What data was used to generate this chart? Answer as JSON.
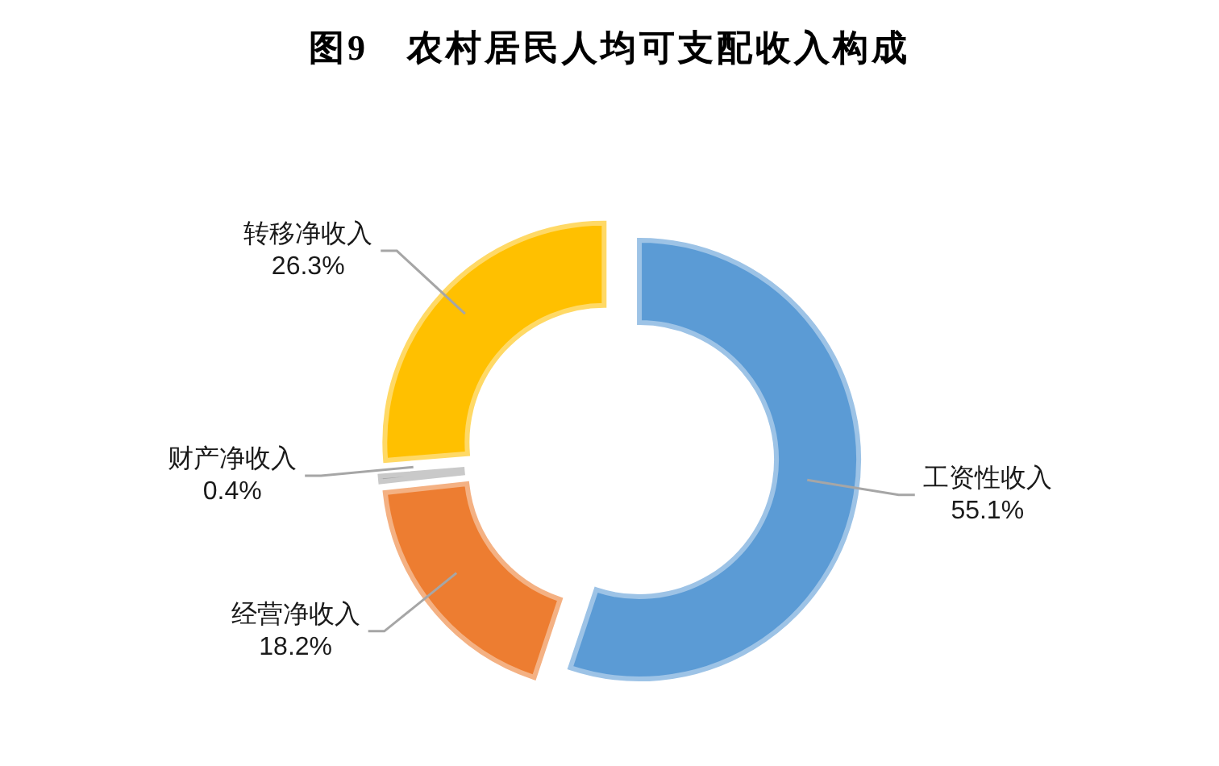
{
  "chart_data": {
    "type": "donut",
    "title": "图9　农村居民人均可支配收入构成",
    "categories": [
      "工资性收入",
      "经营净收入",
      "财产净收入",
      "转移净收入"
    ],
    "values": [
      55.1,
      18.2,
      0.4,
      26.3
    ],
    "colors": [
      "#5b9bd5",
      "#ed7d31",
      "#a5a5a5",
      "#ffc000"
    ],
    "value_labels": [
      "55.1%",
      "18.2%",
      "0.4%",
      "26.3%"
    ]
  }
}
